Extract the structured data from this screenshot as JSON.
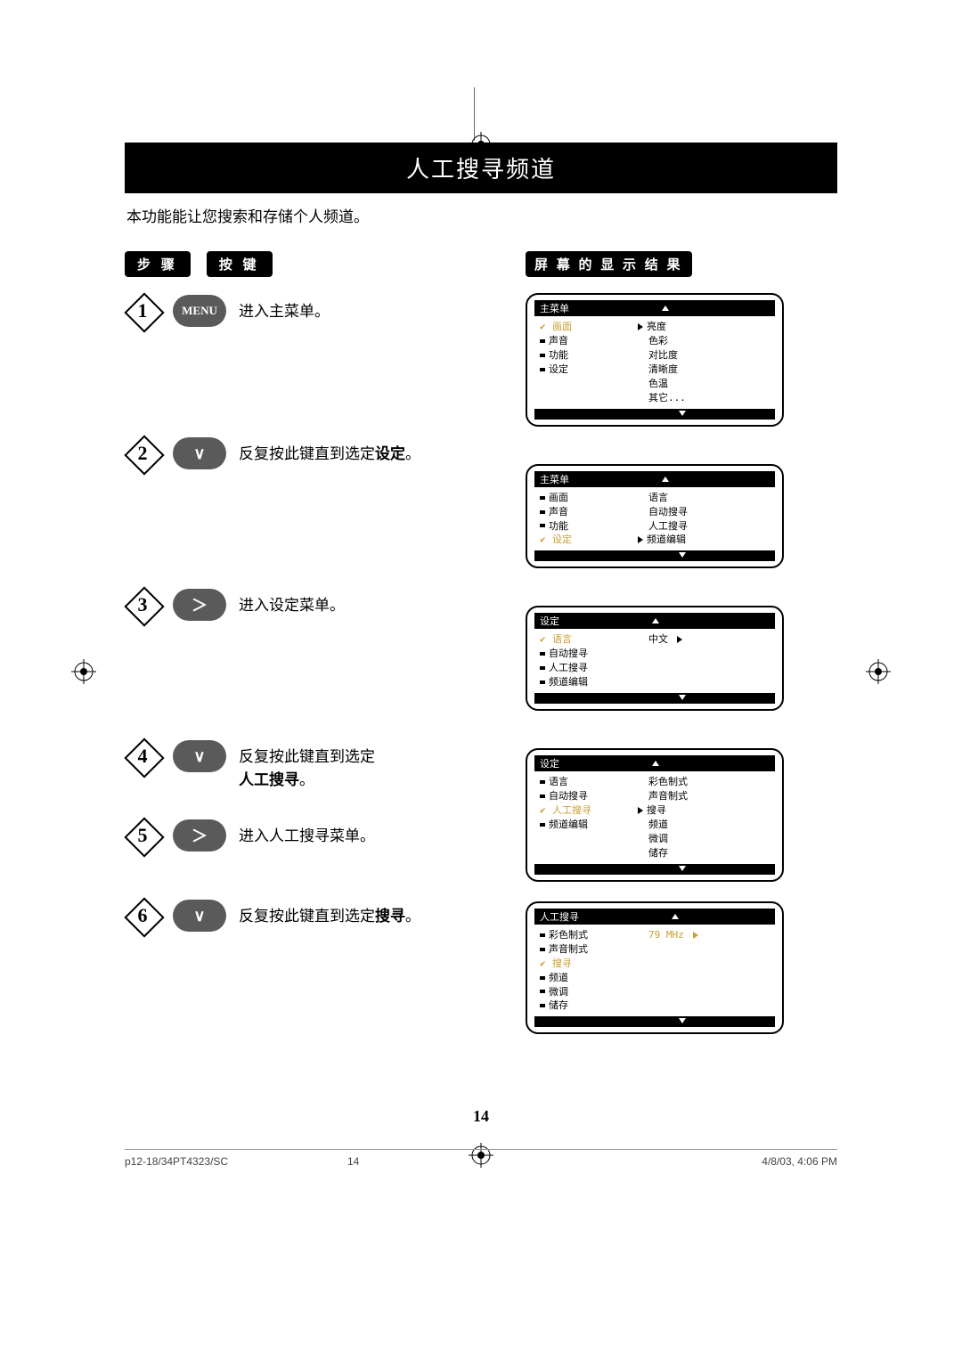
{
  "title": "人工搜寻频道",
  "subtitle": "本功能能让您搜索和存储个人频道。",
  "headers": {
    "step": "步 骤",
    "button": "按 键",
    "result": "屏 幕 的 显 示 结 果"
  },
  "steps": [
    {
      "num": "1",
      "btn_type": "menu",
      "btn_label": "MENU",
      "text": "进入主菜单。"
    },
    {
      "num": "2",
      "btn_type": "down",
      "btn_label": "∨",
      "text_pre": "反复按此键直到选定",
      "text_bold": "设定",
      "text_post": "。"
    },
    {
      "num": "3",
      "btn_type": "right",
      "btn_label": "＞",
      "text": "进入设定菜单。"
    },
    {
      "num": "4",
      "btn_type": "down",
      "btn_label": "∨",
      "text_pre": "反复按此键直到选定",
      "text_bold2": "人工搜寻",
      "text_post2": "。"
    },
    {
      "num": "5",
      "btn_type": "right",
      "btn_label": "＞",
      "text": "进入人工搜寻菜单。"
    },
    {
      "num": "6",
      "btn_type": "down",
      "btn_label": "∨",
      "text_pre": "反复按此键直到选定",
      "text_bold": "搜寻",
      "text_post": "。"
    }
  ],
  "osd1": {
    "title": "主菜单",
    "left": [
      {
        "mark": "check",
        "label": "画面",
        "sel": true
      },
      {
        "mark": "bullet",
        "label": "声音"
      },
      {
        "mark": "bullet",
        "label": "功能"
      },
      {
        "mark": "bullet",
        "label": "设定"
      }
    ],
    "right": [
      {
        "arrow": true,
        "label": "亮度"
      },
      {
        "label": "色彩"
      },
      {
        "label": "对比度"
      },
      {
        "label": "清晰度"
      },
      {
        "label": "色温"
      },
      {
        "label": "其它..."
      }
    ]
  },
  "osd2": {
    "title": "主菜单",
    "left": [
      {
        "mark": "bullet",
        "label": "画面"
      },
      {
        "mark": "bullet",
        "label": "声音"
      },
      {
        "mark": "bullet",
        "label": "功能"
      },
      {
        "mark": "check",
        "label": "设定",
        "sel": true
      }
    ],
    "right": [
      {
        "label": "语言"
      },
      {
        "label": "自动搜寻"
      },
      {
        "label": "人工搜寻"
      },
      {
        "arrow": true,
        "label": "频道编辑"
      }
    ]
  },
  "osd3": {
    "title": "设定",
    "left": [
      {
        "mark": "check",
        "label": "语言",
        "sel": true
      },
      {
        "mark": "bullet",
        "label": "自动搜寻"
      },
      {
        "mark": "bullet",
        "label": "人工搜寻"
      },
      {
        "mark": "bullet",
        "label": "频道编辑"
      }
    ],
    "right": [
      {
        "label": "中文",
        "tail_arrow": true
      }
    ]
  },
  "osd4": {
    "title": "设定",
    "left": [
      {
        "mark": "bullet",
        "label": "语言"
      },
      {
        "mark": "bullet",
        "label": "自动搜寻"
      },
      {
        "mark": "check",
        "label": "人工搜寻",
        "sel": true
      },
      {
        "mark": "bullet",
        "label": "频道编辑"
      }
    ],
    "right": [
      {
        "label": "彩色制式"
      },
      {
        "label": "声音制式"
      },
      {
        "arrow": true,
        "label": "搜寻"
      },
      {
        "label": "频道"
      },
      {
        "label": "微调"
      },
      {
        "label": "储存"
      }
    ]
  },
  "osd5": {
    "title": "人工搜寻",
    "left": [
      {
        "mark": "bullet",
        "label": "彩色制式"
      },
      {
        "mark": "bullet",
        "label": "声音制式"
      },
      {
        "mark": "check",
        "label": "搜寻",
        "sel": true
      },
      {
        "mark": "bullet",
        "label": "频道"
      },
      {
        "mark": "bullet",
        "label": "微调"
      },
      {
        "mark": "bullet",
        "label": "储存"
      }
    ],
    "right": [
      {
        "label": ""
      },
      {
        "label": ""
      },
      {
        "label": "79 MHz",
        "sel": true,
        "tail_arrow": true
      }
    ]
  },
  "page_number": "14",
  "footer": {
    "left": "p12-18/34PT4323/SC",
    "mid": "14",
    "right": "4/8/03, 4:06 PM"
  }
}
